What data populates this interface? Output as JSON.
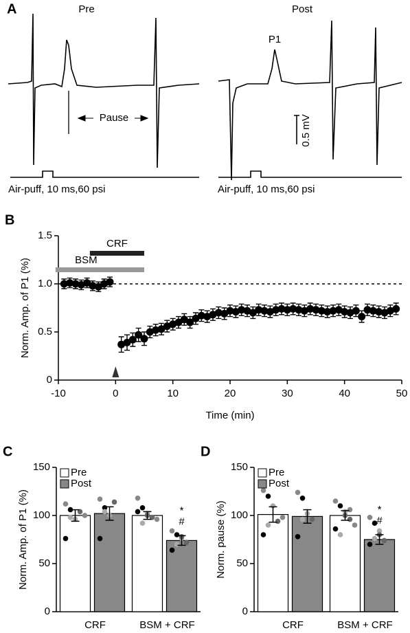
{
  "panel_a": {
    "label": "A",
    "pre_title": "Pre",
    "post_title": "Post",
    "p1": "P1",
    "pause": "Pause",
    "scale": "0.5 mV",
    "pre_stimulus": "Air-puff, 10 ms,60 psi",
    "post_stimulus": "Air-puff, 10 ms,60 psi"
  },
  "chart_data": [
    {
      "type": "scatter",
      "panel": "B",
      "ylabel": "Norm. Amp. of P1 (%)",
      "xlabel": "Time (min)",
      "x": [
        -9,
        -8,
        -7,
        -6,
        -5,
        -4,
        -3,
        -2,
        -1,
        1,
        2,
        3,
        4,
        5,
        6,
        7,
        8,
        9,
        10,
        11,
        12,
        13,
        14,
        15,
        16,
        17,
        18,
        19,
        20,
        21,
        22,
        23,
        24,
        25,
        26,
        27,
        28,
        29,
        30,
        31,
        32,
        33,
        34,
        35,
        36,
        37,
        38,
        39,
        40,
        41,
        42,
        43,
        44,
        45,
        46,
        47,
        48,
        49
      ],
      "values": [
        1.0,
        1.01,
        1.0,
        0.99,
        1.01,
        0.98,
        0.97,
        1.0,
        1.02,
        0.37,
        0.39,
        0.42,
        0.47,
        0.43,
        0.5,
        0.52,
        0.53,
        0.56,
        0.58,
        0.6,
        0.63,
        0.6,
        0.64,
        0.67,
        0.66,
        0.68,
        0.7,
        0.69,
        0.72,
        0.71,
        0.73,
        0.72,
        0.7,
        0.73,
        0.72,
        0.71,
        0.73,
        0.74,
        0.73,
        0.74,
        0.73,
        0.72,
        0.74,
        0.73,
        0.72,
        0.71,
        0.72,
        0.73,
        0.71,
        0.7,
        0.72,
        0.66,
        0.73,
        0.72,
        0.71,
        0.7,
        0.72,
        0.74
      ],
      "errors": [
        0.05,
        0.05,
        0.05,
        0.05,
        0.05,
        0.05,
        0.05,
        0.05,
        0.05,
        0.08,
        0.08,
        0.07,
        0.07,
        0.07,
        0.06,
        0.06,
        0.06,
        0.06,
        0.06,
        0.06,
        0.06,
        0.06,
        0.06,
        0.06,
        0.06,
        0.06,
        0.06,
        0.06,
        0.06,
        0.06,
        0.06,
        0.06,
        0.06,
        0.06,
        0.06,
        0.06,
        0.06,
        0.06,
        0.06,
        0.06,
        0.06,
        0.06,
        0.06,
        0.06,
        0.06,
        0.06,
        0.06,
        0.06,
        0.06,
        0.06,
        0.06,
        0.06,
        0.06,
        0.06,
        0.06,
        0.06,
        0.06,
        0.06
      ],
      "color": "#000",
      "xlim": [
        -10,
        50
      ],
      "ylim": [
        0,
        1.5
      ],
      "xticks": [
        -10,
        0,
        10,
        20,
        30,
        40,
        50
      ],
      "yticks": [
        0,
        0.5,
        {
          "value": 1,
          "label": "1.0"
        },
        1.5
      ],
      "hline": 1,
      "arrow_x": 0,
      "annotations": [
        {
          "text": "CRF",
          "start": -4.5,
          "end": 5,
          "color": "#222"
        },
        {
          "text": "BSM",
          "start": -10.5,
          "end": 5,
          "color": "#999"
        }
      ]
    },
    {
      "type": "bar",
      "panel": "C",
      "ylabel": "Norm. Amp. of P1 (%)",
      "categories": [
        "CRF",
        "BSM + CRF"
      ],
      "series": [
        {
          "name": "Pre",
          "color": "#ffffff",
          "values": [
            100,
            100
          ],
          "errors": [
            6,
            4
          ],
          "points": [
            [
              112,
              106,
              96,
              104,
              100,
              76,
              98
            ],
            [
              118,
              108,
              102,
              98,
              96,
              104,
              92,
              100
            ]
          ]
        },
        {
          "name": "Post",
          "color": "#888888",
          "values": [
            102,
            74
          ],
          "errors": [
            7,
            5
          ],
          "points": [
            [
              117,
              108,
              100,
              114,
              96,
              76,
              104
            ],
            [
              84,
              80,
              76,
              72,
              68,
              64,
              70,
              78
            ]
          ]
        }
      ],
      "ylim": [
        0,
        150
      ],
      "yticks": [
        0,
        50,
        100,
        150
      ],
      "annotations": [
        "*",
        "#"
      ]
    },
    {
      "type": "bar",
      "panel": "D",
      "ylabel": "Norm. pause (%)",
      "categories": [
        "CRF",
        "BSM + CRF"
      ],
      "series": [
        {
          "name": "Pre",
          "color": "#ffffff",
          "values": [
            101,
            100
          ],
          "errors": [
            8,
            5
          ],
          "points": [
            [
              126,
              120,
              110,
              94,
              98,
              80,
              90
            ],
            [
              115,
              110,
              104,
              96,
              90,
              86,
              80,
              100,
              106
            ]
          ]
        },
        {
          "name": "Post",
          "color": "#888888",
          "values": [
            99,
            75
          ],
          "errors": [
            7,
            5
          ],
          "points": [
            [
              124,
              118,
              102,
              96,
              90,
              78,
              96
            ],
            [
              98,
              92,
              84,
              74,
              68,
              70,
              76,
              80
            ]
          ]
        }
      ],
      "ylim": [
        0,
        150
      ],
      "yticks": [
        0,
        50,
        100,
        150
      ],
      "annotations": [
        "*",
        "#"
      ]
    }
  ]
}
